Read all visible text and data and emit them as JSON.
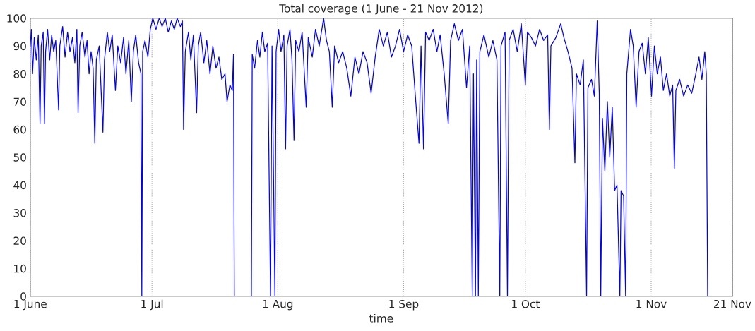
{
  "chart_data": {
    "type": "line",
    "title": "Total coverage (1 June - 21 Nov 2012)",
    "xlabel": "time",
    "xlim": [
      "2012-06-01",
      "2012-11-21"
    ],
    "xticks": [
      {
        "value": "2012-06-01",
        "label": "1 June"
      },
      {
        "value": "2012-07-01",
        "label": "1 Jul"
      },
      {
        "value": "2012-08-01",
        "label": "1 Aug"
      },
      {
        "value": "2012-09-01",
        "label": "1 Sep"
      },
      {
        "value": "2012-10-01",
        "label": "1 Oct"
      },
      {
        "value": "2012-11-01",
        "label": "1 Nov"
      },
      {
        "value": "2012-11-21",
        "label": "21 Nov"
      }
    ],
    "ylim": [
      0,
      100
    ],
    "yticks": [
      0,
      10,
      20,
      30,
      40,
      50,
      60,
      70,
      80,
      90,
      100
    ],
    "grid": "x",
    "marker": "none",
    "line_style": "solid",
    "series": [
      {
        "color": "#0000ff",
        "x": [
          "2012-06-01T00:00",
          "2012-06-01T07:00",
          "2012-06-01T14:00",
          "2012-06-02T00:00",
          "2012-06-02T12:00",
          "2012-06-03T00:00",
          "2012-06-03T10:00",
          "2012-06-03T17:00",
          "2012-06-04T05:00",
          "2012-06-04T12:00",
          "2012-06-04T19:00",
          "2012-06-05T07:00",
          "2012-06-05T19:00",
          "2012-06-06T07:00",
          "2012-06-06T19:00",
          "2012-06-07T07:00",
          "2012-06-08T00:00",
          "2012-06-08T07:00",
          "2012-06-09T00:00",
          "2012-06-09T14:00",
          "2012-06-10T05:00",
          "2012-06-10T19:00",
          "2012-06-11T10:00",
          "2012-06-12T00:00",
          "2012-06-12T12:00",
          "2012-06-12T19:00",
          "2012-06-13T05:00",
          "2012-06-13T19:00",
          "2012-06-14T12:00",
          "2012-06-15T00:00",
          "2012-06-15T12:00",
          "2012-06-16T00:00",
          "2012-06-16T12:00",
          "2012-06-16T22:00",
          "2012-06-17T07:00",
          "2012-06-18T00:00",
          "2012-06-18T22:00",
          "2012-06-19T07:00",
          "2012-06-20T00:00",
          "2012-06-20T14:00",
          "2012-06-21T05:00",
          "2012-06-22T00:00",
          "2012-06-22T14:00",
          "2012-06-23T07:00",
          "2012-06-24T00:00",
          "2012-06-24T14:00",
          "2012-06-25T07:00",
          "2012-06-25T22:00",
          "2012-06-26T10:00",
          "2012-06-27T00:00",
          "2012-06-27T17:00",
          "2012-06-28T07:00",
          "2012-06-28T12:00",
          "2012-06-28T17:00",
          "2012-06-29T07:00",
          "2012-06-30T00:00",
          "2012-06-30T14:00",
          "2012-07-01T05:00",
          "2012-07-02T00:00",
          "2012-07-02T19:00",
          "2012-07-03T12:00",
          "2012-07-04T07:00",
          "2012-07-05T00:00",
          "2012-07-05T19:00",
          "2012-07-06T12:00",
          "2012-07-07T05:00",
          "2012-07-08T00:00",
          "2012-07-08T12:00",
          "2012-07-08T19:00",
          "2012-07-09T05:00",
          "2012-07-10T00:00",
          "2012-07-10T14:00",
          "2012-07-11T05:00",
          "2012-07-12T00:00",
          "2012-07-12T10:00",
          "2012-07-13T00:00",
          "2012-07-13T19:00",
          "2012-07-14T12:00",
          "2012-07-15T07:00",
          "2012-07-16T00:00",
          "2012-07-16T19:00",
          "2012-07-17T12:00",
          "2012-07-18T05:00",
          "2012-07-19T00:00",
          "2012-07-19T12:00",
          "2012-07-20T05:00",
          "2012-07-20T19:00",
          "2012-07-21T02:00",
          "2012-07-21T07:00",
          "2012-07-23T12:00",
          "2012-07-25T12:00",
          "2012-07-25T17:00",
          "2012-07-26T07:00",
          "2012-07-27T00:00",
          "2012-07-27T14:00",
          "2012-07-28T05:00",
          "2012-07-28T19:00",
          "2012-07-29T12:00",
          "2012-07-30T05:00",
          "2012-07-30T14:00",
          "2012-07-31T07:00",
          "2012-07-31T14:00",
          "2012-08-01T05:00",
          "2012-08-01T19:00",
          "2012-08-02T12:00",
          "2012-08-02T22:00",
          "2012-08-03T07:00",
          "2012-08-04T00:00",
          "2012-08-04T12:00",
          "2012-08-05T00:00",
          "2012-08-05T10:00",
          "2012-08-06T05:00",
          "2012-08-07T00:00",
          "2012-08-08T00:00",
          "2012-08-08T12:00",
          "2012-08-09T12:00",
          "2012-08-10T07:00",
          "2012-08-11T05:00",
          "2012-08-12T07:00",
          "2012-08-13T00:00",
          "2012-08-13T17:00",
          "2012-08-14T10:00",
          "2012-08-15T00:00",
          "2012-08-16T00:00",
          "2012-08-17T00:00",
          "2012-08-18T00:00",
          "2012-08-19T00:00",
          "2012-08-20T00:00",
          "2012-08-21T00:00",
          "2012-08-22T00:00",
          "2012-08-23T00:00",
          "2012-08-24T00:00",
          "2012-08-25T00:00",
          "2012-08-26T00:00",
          "2012-08-27T00:00",
          "2012-08-28T00:00",
          "2012-08-29T00:00",
          "2012-08-30T00:00",
          "2012-08-31T00:00",
          "2012-09-01T00:00",
          "2012-09-02T00:00",
          "2012-09-03T00:00",
          "2012-09-04T00:00",
          "2012-09-04T19:00",
          "2012-09-05T07:00",
          "2012-09-05T22:00",
          "2012-09-06T10:00",
          "2012-09-07T07:00",
          "2012-09-08T07:00",
          "2012-09-09T05:00",
          "2012-09-10T00:00",
          "2012-09-11T00:00",
          "2012-09-12T00:00",
          "2012-09-12T14:00",
          "2012-09-13T12:00",
          "2012-09-14T12:00",
          "2012-09-15T12:00",
          "2012-09-16T12:00",
          "2012-09-17T07:00",
          "2012-09-17T22:00",
          "2012-09-18T05:00",
          "2012-09-18T17:00",
          "2012-09-19T00:00",
          "2012-09-19T10:00",
          "2012-09-19T19:00",
          "2012-09-20T19:00",
          "2012-09-22T00:00",
          "2012-09-23T00:00",
          "2012-09-24T00:00",
          "2012-09-24T17:00",
          "2012-09-25T00:00",
          "2012-09-26T00:00",
          "2012-09-26T14:00",
          "2012-09-27T00:00",
          "2012-09-28T00:00",
          "2012-09-29T00:00",
          "2012-09-30T00:00",
          "2012-10-01T00:00",
          "2012-10-01T12:00",
          "2012-10-02T12:00",
          "2012-10-03T12:00",
          "2012-10-04T12:00",
          "2012-10-05T12:00",
          "2012-10-06T12:00",
          "2012-10-06T22:00",
          "2012-10-07T07:00",
          "2012-10-08T12:00",
          "2012-10-09T17:00",
          "2012-10-10T12:00",
          "2012-10-11T12:00",
          "2012-10-12T12:00",
          "2012-10-13T05:00",
          "2012-10-13T14:00",
          "2012-10-14T12:00",
          "2012-10-15T07:00",
          "2012-10-16T02:00",
          "2012-10-16T10:00",
          "2012-10-17T07:00",
          "2012-10-18T00:00",
          "2012-10-18T17:00",
          "2012-10-19T05:00",
          "2012-10-19T14:00",
          "2012-10-20T00:00",
          "2012-10-20T14:00",
          "2012-10-21T05:00",
          "2012-10-21T19:00",
          "2012-10-22T10:00",
          "2012-10-23T00:00",
          "2012-10-23T14:00",
          "2012-10-24T07:00",
          "2012-10-24T14:00",
          "2012-10-25T05:00",
          "2012-10-25T17:00",
          "2012-10-26T00:00",
          "2012-10-26T22:00",
          "2012-10-27T14:00",
          "2012-10-28T07:00",
          "2012-10-29T00:00",
          "2012-10-29T19:00",
          "2012-10-30T14:00",
          "2012-10-31T07:00",
          "2012-11-01T02:00",
          "2012-11-01T19:00",
          "2012-11-02T12:00",
          "2012-11-03T07:00",
          "2012-11-04T00:00",
          "2012-11-04T19:00",
          "2012-11-05T14:00",
          "2012-11-06T07:00",
          "2012-11-06T17:00",
          "2012-11-07T02:00",
          "2012-11-08T00:00",
          "2012-11-09T00:00",
          "2012-11-10T00:00",
          "2012-11-11T00:00",
          "2012-11-12T00:00",
          "2012-11-12T19:00",
          "2012-11-13T12:00",
          "2012-11-14T05:00",
          "2012-11-14T14:00",
          "2012-11-14T22:00"
        ],
        "values": [
          90,
          96,
          80,
          93,
          85,
          94,
          62,
          90,
          95,
          62,
          88,
          96,
          85,
          94,
          88,
          92,
          67,
          90,
          97,
          86,
          95,
          88,
          93,
          84,
          96,
          66,
          90,
          95,
          86,
          92,
          80,
          88,
          82,
          55,
          85,
          90,
          59,
          85,
          95,
          88,
          94,
          74,
          90,
          84,
          93,
          80,
          92,
          70,
          88,
          94,
          84,
          80,
          0,
          88,
          92,
          86,
          96,
          100,
          96,
          100,
          97,
          100,
          95,
          99,
          96,
          100,
          97,
          99,
          60,
          88,
          95,
          85,
          94,
          66,
          90,
          95,
          84,
          92,
          80,
          90,
          82,
          86,
          78,
          80,
          70,
          76,
          74,
          87,
          0,
          null,
          0,
          87,
          82,
          92,
          86,
          95,
          88,
          91,
          0,
          90,
          0,
          88,
          96,
          88,
          94,
          53,
          90,
          96,
          85,
          56,
          92,
          88,
          95,
          68,
          93,
          86,
          96,
          90,
          100,
          92,
          88,
          68,
          90,
          84,
          88,
          82,
          72,
          86,
          80,
          88,
          84,
          73,
          86,
          96,
          90,
          95,
          86,
          90,
          96,
          88,
          94,
          90,
          70,
          55,
          90,
          53,
          95,
          92,
          96,
          88,
          94,
          80,
          62,
          92,
          98,
          92,
          96,
          75,
          90,
          0,
          80,
          0,
          85,
          0,
          88,
          94,
          86,
          92,
          85,
          0,
          90,
          95,
          0,
          92,
          96,
          88,
          98,
          76,
          95,
          93,
          90,
          96,
          92,
          94,
          60,
          90,
          93,
          98,
          93,
          88,
          82,
          48,
          80,
          76,
          85,
          0,
          75,
          78,
          72,
          99,
          73,
          0,
          64,
          45,
          70,
          50,
          68,
          38,
          40,
          0,
          38,
          36,
          0,
          80,
          96,
          90,
          68,
          88,
          91,
          80,
          93,
          72,
          90,
          80,
          86,
          74,
          80,
          72,
          76,
          46,
          74,
          78,
          72,
          76,
          73,
          80,
          86,
          78,
          88,
          80,
          0
        ]
      }
    ]
  }
}
